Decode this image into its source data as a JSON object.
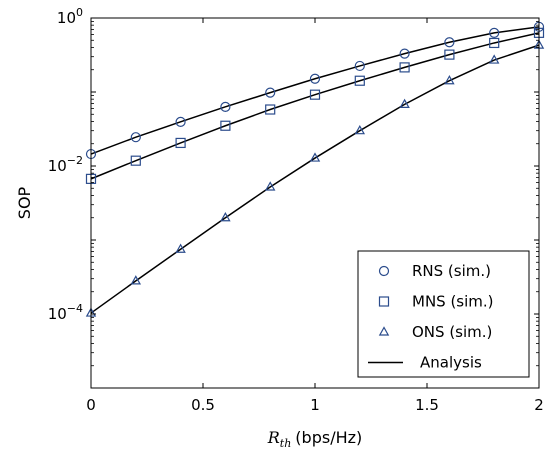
{
  "chart_data": {
    "type": "line",
    "xlabel_var": "R",
    "xlabel_sub": "th",
    "xlabel_unit": "(bps/Hz)",
    "ylabel": "SOP",
    "xlim": [
      0,
      2
    ],
    "ylim": [
      1e-05,
      1
    ],
    "yscale": "log",
    "grid": false,
    "legend_position": "bottom-right",
    "x_ticks": [
      "0",
      "0.5",
      "1",
      "1.5",
      "2"
    ],
    "y_ticks": [
      {
        "value": 1,
        "base": "10",
        "exp": "0"
      },
      {
        "value": 0.01,
        "base": "10",
        "exp": "−2"
      },
      {
        "value": 0.0001,
        "base": "10",
        "exp": "−4"
      }
    ],
    "x": [
      0,
      0.2,
      0.4,
      0.6,
      0.8,
      1.0,
      1.2,
      1.4,
      1.6,
      1.8,
      2.0
    ],
    "series": [
      {
        "name": "RNS (sim.)",
        "marker": "circle",
        "color": "#2b4c8c",
        "values": [
          0.0145,
          0.0245,
          0.0395,
          0.063,
          0.098,
          0.151,
          0.225,
          0.33,
          0.47,
          0.63,
          0.76
        ]
      },
      {
        "name": "MNS (sim.)",
        "marker": "square",
        "color": "#2b4c8c",
        "values": [
          0.0067,
          0.0118,
          0.0205,
          0.035,
          0.058,
          0.092,
          0.142,
          0.215,
          0.32,
          0.46,
          0.63
        ]
      },
      {
        "name": "ONS (sim.)",
        "marker": "triangle",
        "color": "#2b4c8c",
        "values": [
          0.000103,
          0.00028,
          0.00075,
          0.002,
          0.0052,
          0.0128,
          0.03,
          0.068,
          0.142,
          0.27,
          0.43
        ]
      }
    ],
    "analysis_label": "Analysis",
    "analysis_color": "#000000"
  }
}
